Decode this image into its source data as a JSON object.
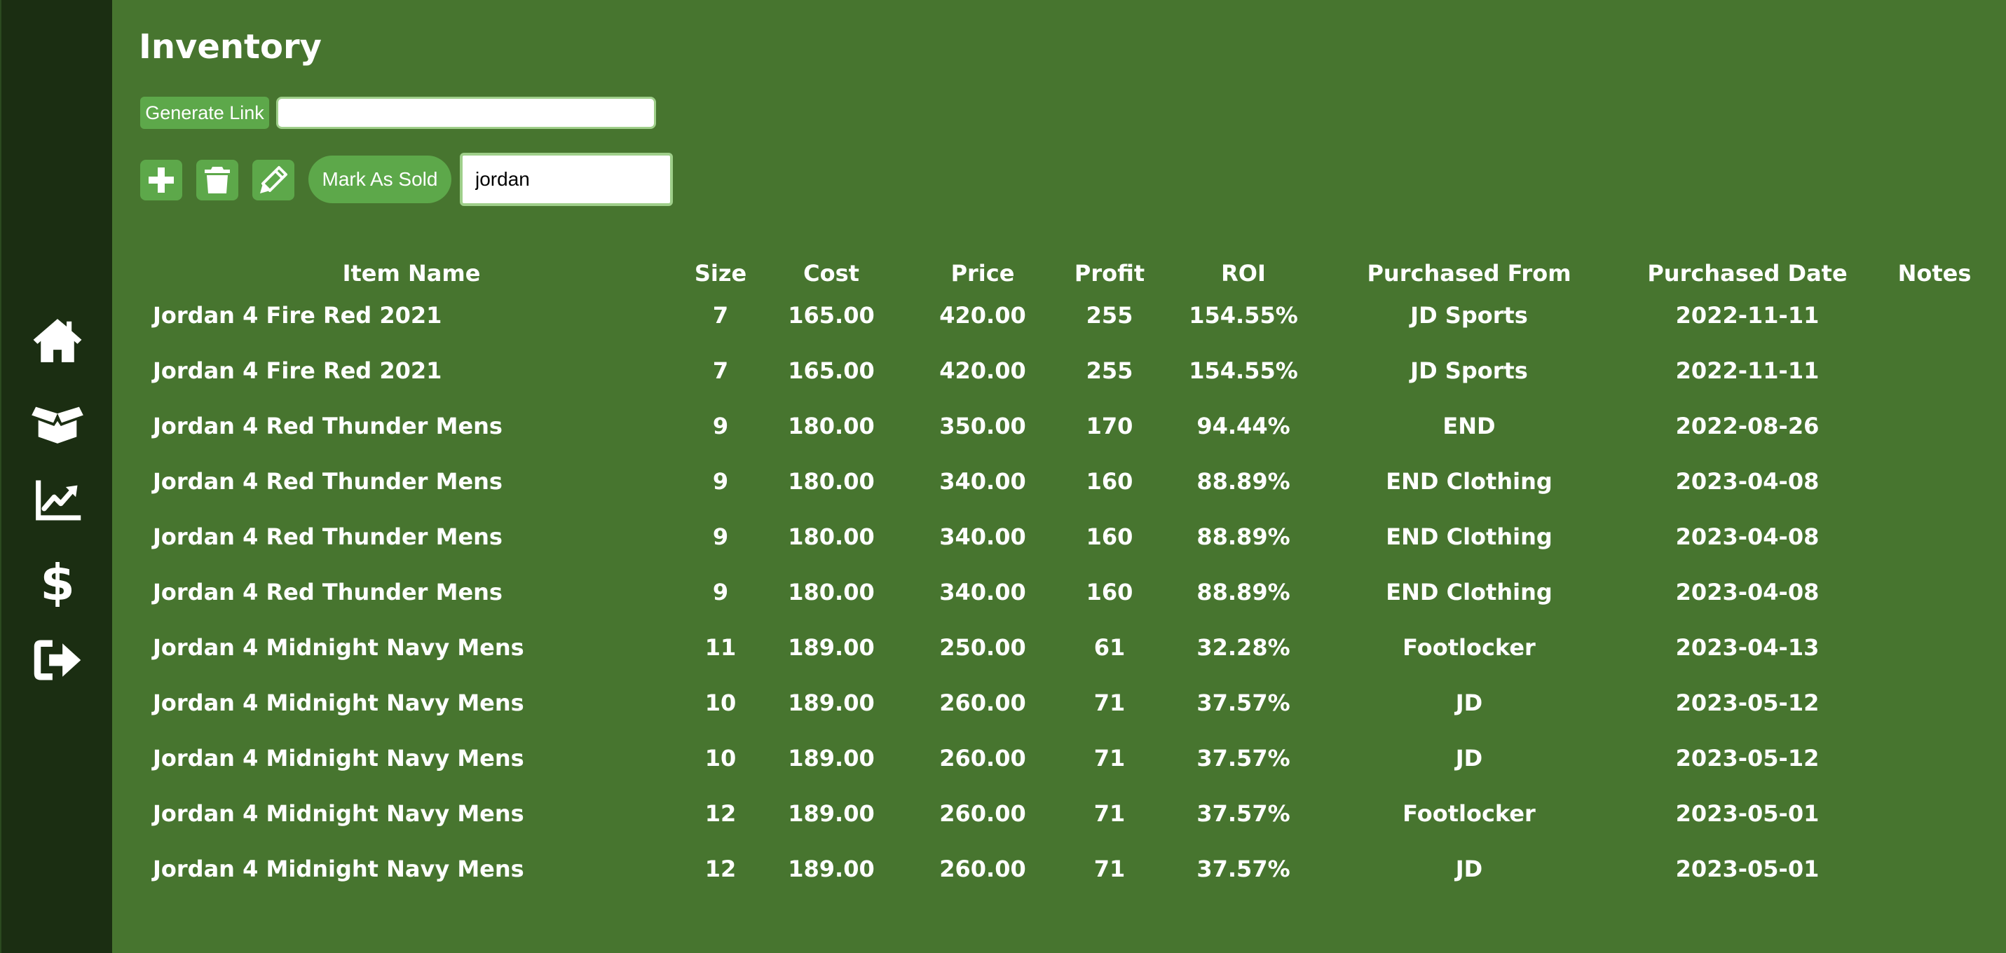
{
  "sidebar": {
    "items": [
      {
        "icon": "home-icon",
        "name": "nav-home"
      },
      {
        "icon": "box-open-icon",
        "name": "nav-inventory"
      },
      {
        "icon": "chart-line-icon",
        "name": "nav-analytics"
      },
      {
        "icon": "dollar-icon",
        "name": "nav-sales"
      },
      {
        "icon": "sign-out-icon",
        "name": "nav-logout"
      }
    ]
  },
  "header": {
    "title": "Inventory"
  },
  "link_bar": {
    "generate_label": "Generate Link",
    "link_value": ""
  },
  "toolbar": {
    "add_icon": "plus-icon",
    "delete_icon": "trash-icon",
    "edit_icon": "pencil-icon",
    "mark_sold_label": "Mark As Sold",
    "search_value": "jordan"
  },
  "table": {
    "columns": [
      "Item Name",
      "Size",
      "Cost",
      "Price",
      "Profit",
      "ROI",
      "Purchased From",
      "Purchased Date",
      "Notes"
    ],
    "rows": [
      [
        "Jordan 4 Fire Red 2021",
        "7",
        "165.00",
        "420.00",
        "255",
        "154.55%",
        "JD Sports",
        "2022-11-11",
        ""
      ],
      [
        "Jordan 4 Fire Red 2021",
        "7",
        "165.00",
        "420.00",
        "255",
        "154.55%",
        "JD Sports",
        "2022-11-11",
        ""
      ],
      [
        "Jordan 4 Red Thunder Mens",
        "9",
        "180.00",
        "350.00",
        "170",
        "94.44%",
        "END",
        "2022-08-26",
        ""
      ],
      [
        "Jordan 4 Red Thunder Mens",
        "9",
        "180.00",
        "340.00",
        "160",
        "88.89%",
        "END Clothing",
        "2023-04-08",
        ""
      ],
      [
        "Jordan 4 Red Thunder Mens",
        "9",
        "180.00",
        "340.00",
        "160",
        "88.89%",
        "END Clothing",
        "2023-04-08",
        ""
      ],
      [
        "Jordan 4 Red Thunder Mens",
        "9",
        "180.00",
        "340.00",
        "160",
        "88.89%",
        "END Clothing",
        "2023-04-08",
        ""
      ],
      [
        "Jordan 4 Midnight Navy Mens",
        "11",
        "189.00",
        "250.00",
        "61",
        "32.28%",
        "Footlocker",
        "2023-04-13",
        ""
      ],
      [
        "Jordan 4 Midnight Navy Mens",
        "10",
        "189.00",
        "260.00",
        "71",
        "37.57%",
        "JD",
        "2023-05-12",
        ""
      ],
      [
        "Jordan 4 Midnight Navy Mens",
        "10",
        "189.00",
        "260.00",
        "71",
        "37.57%",
        "JD",
        "2023-05-12",
        ""
      ],
      [
        "Jordan 4 Midnight Navy Mens",
        "12",
        "189.00",
        "260.00",
        "71",
        "37.57%",
        "Footlocker",
        "2023-05-01",
        ""
      ],
      [
        "Jordan 4 Midnight Navy Mens",
        "12",
        "189.00",
        "260.00",
        "71",
        "37.57%",
        "JD",
        "2023-05-01",
        ""
      ]
    ]
  },
  "colors": {
    "background": "#47752f",
    "sidebar": "#1b2e12",
    "button": "#5da84a",
    "input_border": "#9fcf8a",
    "text": "#ffffff"
  }
}
